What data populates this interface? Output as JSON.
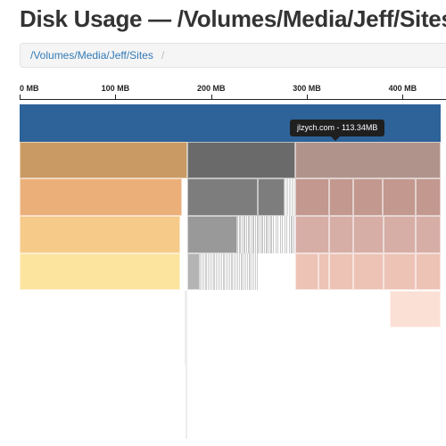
{
  "page": {
    "title": "Disk Usage — /Volumes/Media/Jeff/Sites"
  },
  "breadcrumb": {
    "path_label": "/Volumes/Media/Jeff/Sites",
    "separator": "/"
  },
  "axis": {
    "unit": "MB",
    "ticks": [
      "0 MB",
      "100 MB",
      "200 MB",
      "300 MB",
      "400 MB"
    ]
  },
  "tooltip": {
    "text": "jlzych.com - 113.34MB"
  },
  "chart_data": {
    "type": "icicle",
    "root": "Sites",
    "hovered": {
      "name": "jlzych.com",
      "size_mb": 113.34
    },
    "levels": [
      {
        "depth": 0,
        "color": "#2d6399",
        "nodes": [
          {
            "start_mb": 0,
            "end_mb": 440
          }
        ]
      },
      {
        "depth": 1,
        "nodes": [
          {
            "start_mb": 0,
            "end_mb": 175,
            "color": "#c99a63"
          },
          {
            "start_mb": 175,
            "end_mb": 288,
            "color": "#6a6a6a"
          },
          {
            "start_mb": 288,
            "end_mb": 440,
            "color": "#b0948c"
          }
        ]
      },
      {
        "depth": 2,
        "nodes": [
          {
            "start_mb": 0,
            "end_mb": 170,
            "color": "#ebb07a"
          },
          {
            "start_mb": 175,
            "end_mb": 249,
            "color": "#7d7d7d"
          },
          {
            "start_mb": 249,
            "end_mb": 277,
            "color": "#7d7d7d"
          },
          {
            "start_mb": 288,
            "end_mb": 323,
            "color": "#c2988f"
          },
          {
            "start_mb": 323,
            "end_mb": 348,
            "color": "#c2988f"
          },
          {
            "start_mb": 348,
            "end_mb": 379,
            "color": "#c2988f"
          },
          {
            "start_mb": 379,
            "end_mb": 414,
            "color": "#c2988f"
          },
          {
            "start_mb": 414,
            "end_mb": 440,
            "color": "#c2988f"
          }
        ]
      },
      {
        "depth": 3,
        "nodes": [
          {
            "start_mb": 0,
            "end_mb": 168,
            "color": "#f6ca89"
          },
          {
            "start_mb": 175,
            "end_mb": 227,
            "color": "#999999"
          },
          {
            "start_mb": 288,
            "end_mb": 323,
            "color": "#d6aea6"
          },
          {
            "start_mb": 323,
            "end_mb": 348,
            "color": "#d6aea6"
          },
          {
            "start_mb": 348,
            "end_mb": 380,
            "color": "#d6aea6"
          },
          {
            "start_mb": 380,
            "end_mb": 414,
            "color": "#d6aea6"
          },
          {
            "start_mb": 414,
            "end_mb": 440,
            "color": "#d6aea6"
          }
        ]
      },
      {
        "depth": 4,
        "nodes": [
          {
            "start_mb": 0,
            "end_mb": 168,
            "color": "#fce49e"
          },
          {
            "start_mb": 175,
            "end_mb": 188,
            "color": "#b4b4b4"
          },
          {
            "start_mb": 288,
            "end_mb": 312,
            "color": "#edc3b6"
          },
          {
            "start_mb": 312,
            "end_mb": 323,
            "color": "#edc3b6"
          },
          {
            "start_mb": 323,
            "end_mb": 348,
            "color": "#edc3b6"
          },
          {
            "start_mb": 348,
            "end_mb": 380,
            "color": "#edc3b6"
          },
          {
            "start_mb": 380,
            "end_mb": 414,
            "color": "#edc3b6"
          },
          {
            "start_mb": 414,
            "end_mb": 440,
            "color": "#edc3b6"
          }
        ]
      },
      {
        "depth": 5,
        "nodes": [
          {
            "start_mb": 387,
            "end_mb": 440,
            "color": "#fbe0d6"
          }
        ]
      }
    ],
    "thin_slices": [
      {
        "depth": 2,
        "start_mb": 277,
        "end_mb": 288,
        "color": "#dddddd",
        "count": 8
      },
      {
        "depth": 3,
        "start_mb": 227,
        "end_mb": 288,
        "color": "#c8c8c8",
        "count": 26
      },
      {
        "depth": 4,
        "start_mb": 188,
        "end_mb": 250,
        "color": "#cfcfcf",
        "count": 30
      }
    ]
  }
}
